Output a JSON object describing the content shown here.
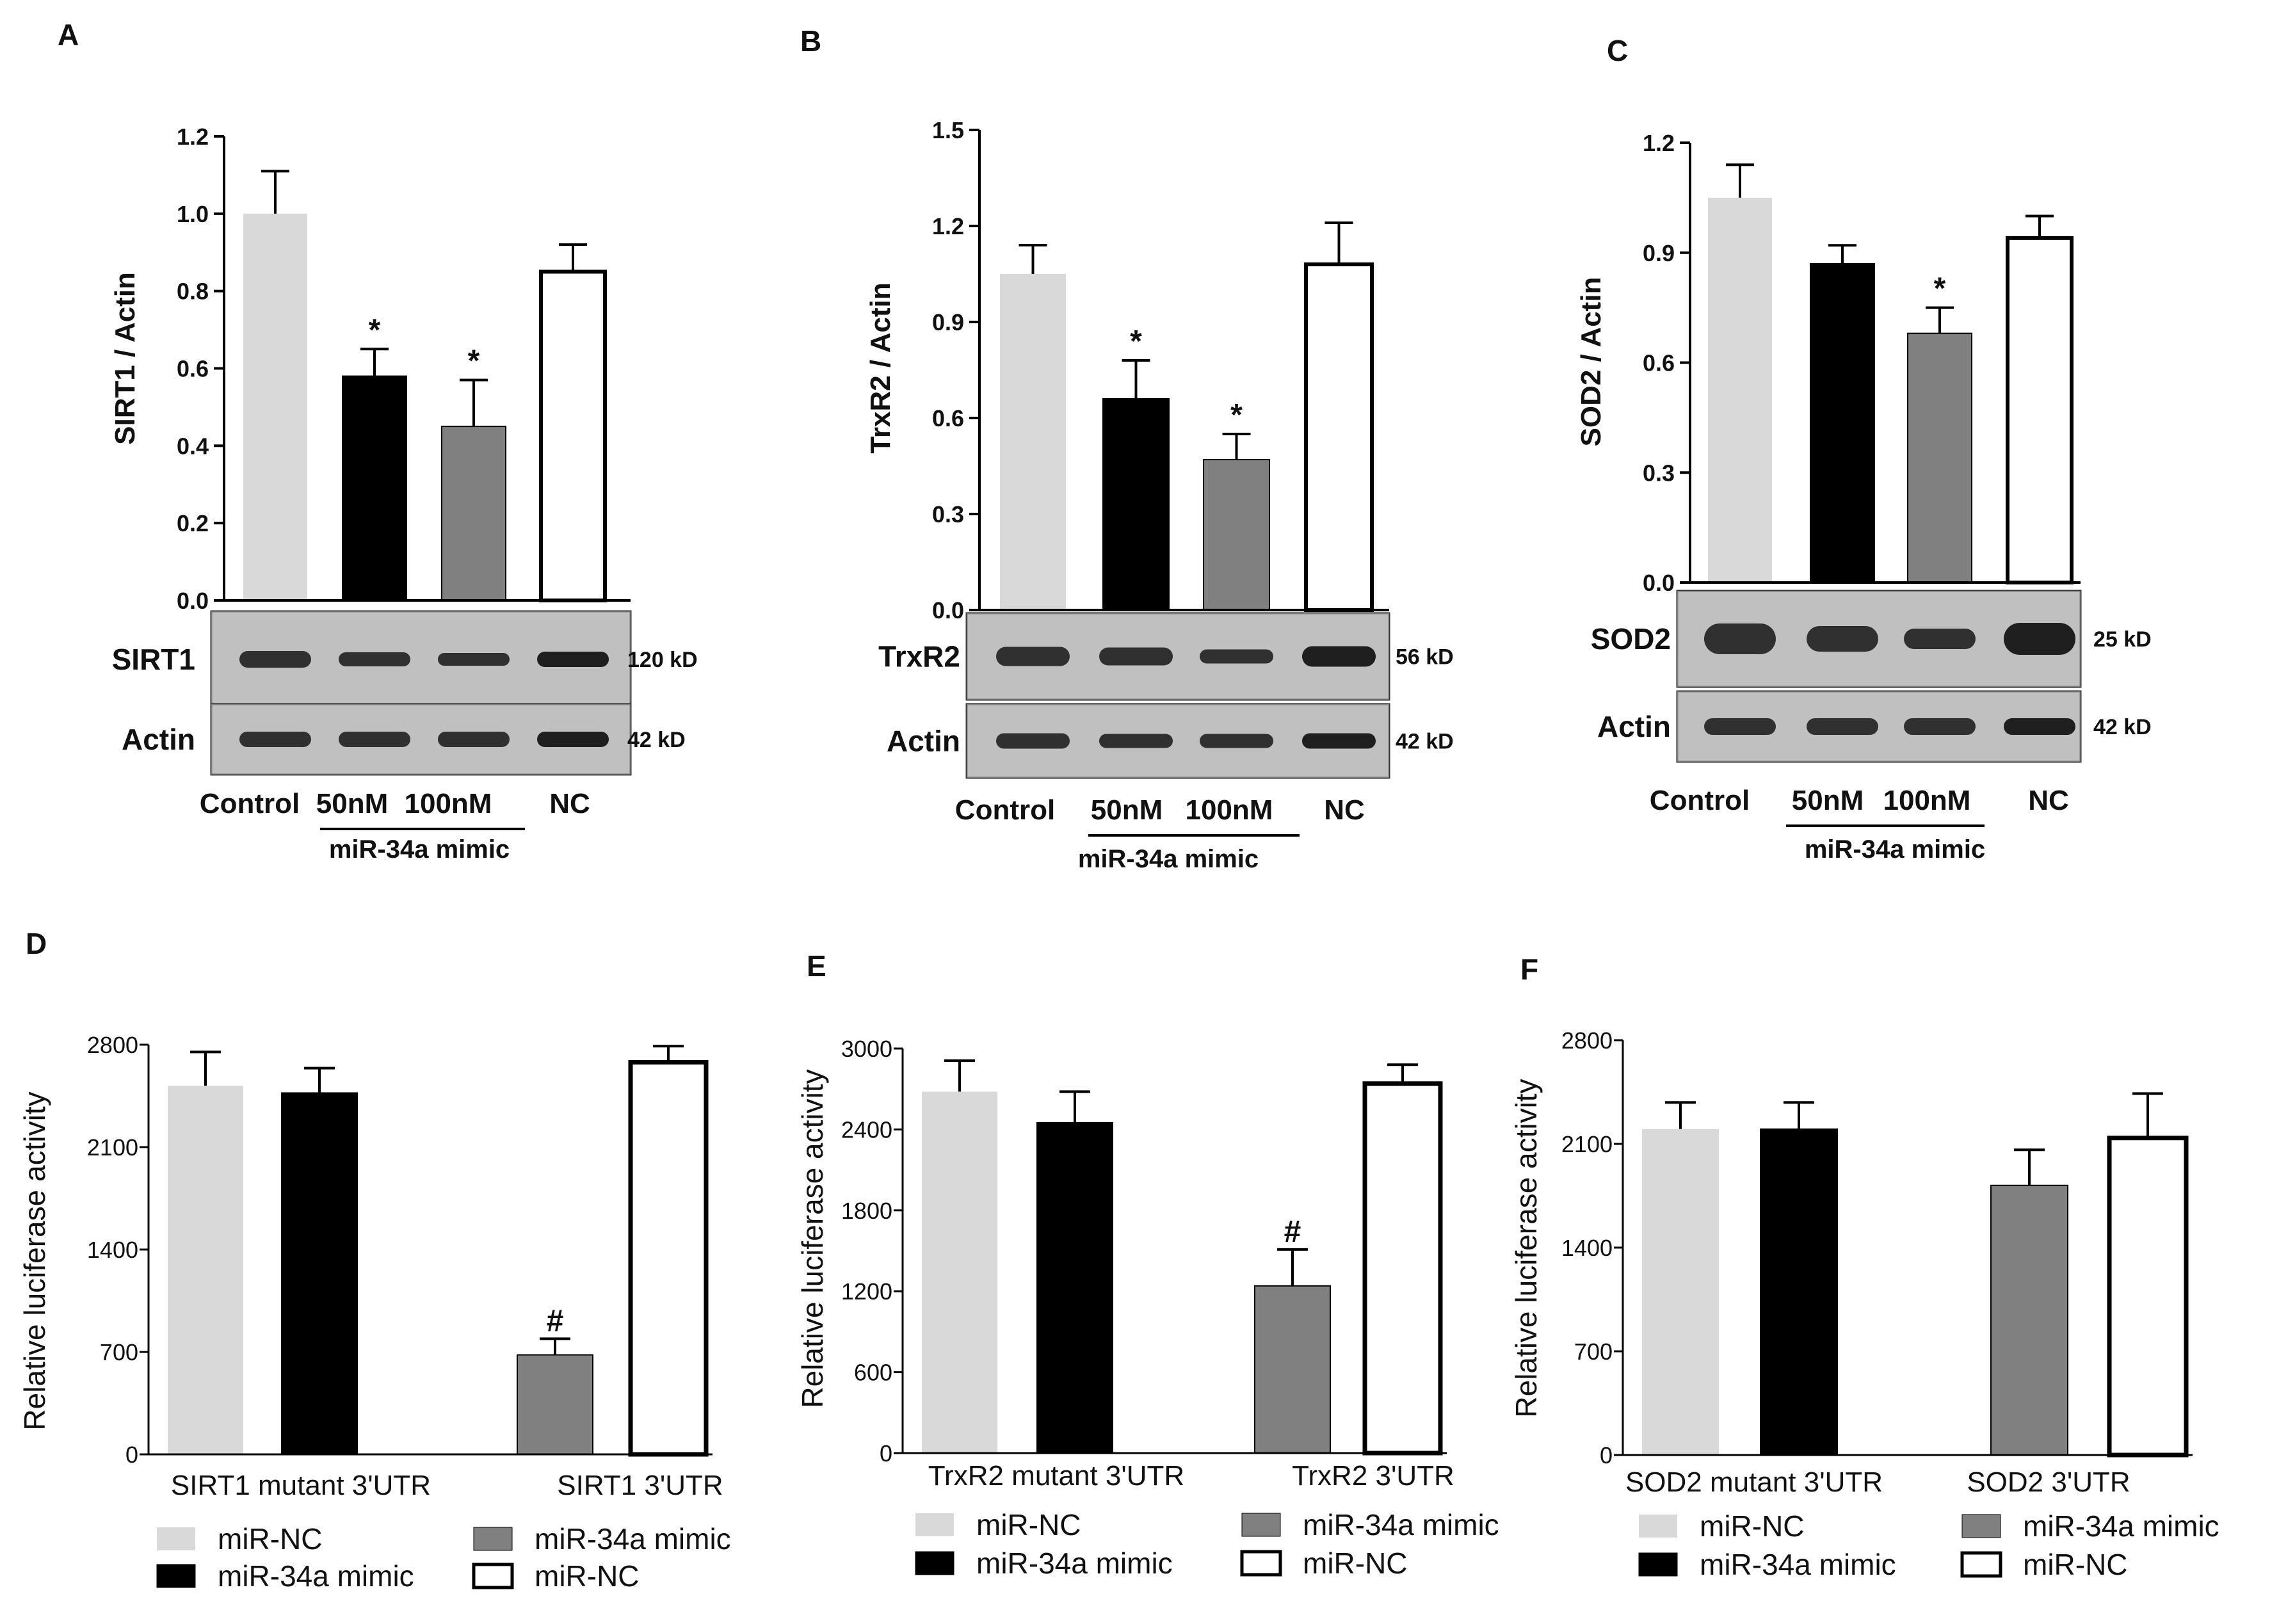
{
  "colors": {
    "light": "#d9d9d9",
    "black": "#000000",
    "gray": "#808080",
    "white": "#ffffff",
    "axis": "#000000"
  },
  "chart_data": [
    {
      "panel": "A",
      "type": "bar",
      "ylabel": "SIRT1 / Actin",
      "ylim": [
        0,
        1.2
      ],
      "yticks": [
        "0.0",
        "0.2",
        "0.4",
        "0.6",
        "0.8",
        "1.0",
        "1.2"
      ],
      "categories": [
        "Control",
        "50nM",
        "100nM",
        "NC"
      ],
      "group_label": "miR-34a mimic",
      "values": [
        1.0,
        0.58,
        0.45,
        0.85
      ],
      "errors": [
        0.11,
        0.07,
        0.12,
        0.07
      ],
      "fills": [
        "light",
        "black",
        "gray",
        "white"
      ],
      "signif": [
        "",
        "*",
        "*",
        ""
      ],
      "blots": [
        {
          "label": "SIRT1",
          "kd": "120 kD"
        },
        {
          "label": "Actin",
          "kd": "42 kD"
        }
      ]
    },
    {
      "panel": "B",
      "type": "bar",
      "ylabel": "TrxR2 / Actin",
      "ylim": [
        0,
        1.5
      ],
      "yticks": [
        "0.0",
        "0.3",
        "0.6",
        "0.9",
        "1.2",
        "1.5"
      ],
      "categories": [
        "Control",
        "50nM",
        "100nM",
        "NC"
      ],
      "group_label": "miR-34a mimic",
      "values": [
        1.05,
        0.66,
        0.47,
        1.08
      ],
      "errors": [
        0.09,
        0.12,
        0.08,
        0.13
      ],
      "fills": [
        "light",
        "black",
        "gray",
        "white"
      ],
      "signif": [
        "",
        "*",
        "*",
        ""
      ],
      "blots": [
        {
          "label": "TrxR2",
          "kd": "56 kD"
        },
        {
          "label": "Actin",
          "kd": "42 kD"
        }
      ]
    },
    {
      "panel": "C",
      "type": "bar",
      "ylabel": "SOD2 / Actin",
      "ylim": [
        0,
        1.2
      ],
      "yticks": [
        "0.0",
        "0.3",
        "0.6",
        "0.9",
        "1.2"
      ],
      "categories": [
        "Control",
        "50nM",
        "100nM",
        "NC"
      ],
      "group_label": "miR-34a mimic",
      "values": [
        1.05,
        0.87,
        0.68,
        0.94
      ],
      "errors": [
        0.09,
        0.05,
        0.07,
        0.06
      ],
      "fills": [
        "light",
        "black",
        "gray",
        "white"
      ],
      "signif": [
        "",
        "",
        "*",
        ""
      ],
      "blots": [
        {
          "label": "SOD2",
          "kd": "25 kD"
        },
        {
          "label": "Actin",
          "kd": "42 kD"
        }
      ]
    },
    {
      "panel": "D",
      "type": "bar",
      "ylabel": "Relative luciferase activity",
      "ylim": [
        0,
        2800
      ],
      "yticks": [
        "0",
        "700",
        "1400",
        "2100",
        "2800"
      ],
      "groups": [
        "SIRT1  mutant  3'UTR",
        "SIRT1  3'UTR"
      ],
      "values": [
        2520,
        2470,
        680,
        2680
      ],
      "errors": [
        230,
        170,
        110,
        110
      ],
      "fills": [
        "light",
        "black",
        "gray",
        "white"
      ],
      "signif": [
        "",
        "",
        "#",
        ""
      ],
      "legend": [
        "miR-NC",
        "miR-34a mimic",
        "miR-34a mimic",
        "miR-NC"
      ]
    },
    {
      "panel": "E",
      "type": "bar",
      "ylabel": "Relative luciferase activity",
      "ylim": [
        0,
        3000
      ],
      "yticks": [
        "0",
        "600",
        "1200",
        "1800",
        "2400",
        "3000"
      ],
      "groups": [
        "TrxR2  mutant  3'UTR",
        "TrxR2  3'UTR"
      ],
      "values": [
        2680,
        2450,
        1240,
        2740
      ],
      "errors": [
        230,
        230,
        270,
        140
      ],
      "fills": [
        "light",
        "black",
        "gray",
        "white"
      ],
      "signif": [
        "",
        "",
        "#",
        ""
      ],
      "legend": [
        "miR-NC",
        "miR-34a mimic",
        "miR-34a mimic",
        "miR-NC"
      ]
    },
    {
      "panel": "F",
      "type": "bar",
      "ylabel": "Relative luciferase activity",
      "ylim": [
        0,
        2800
      ],
      "yticks": [
        "0",
        "700",
        "1400",
        "2100",
        "2800"
      ],
      "groups": [
        "SOD2 mutant 3'UTR",
        "SOD2 3'UTR"
      ],
      "values": [
        2200,
        2200,
        1820,
        2140
      ],
      "errors": [
        180,
        180,
        240,
        300
      ],
      "fills": [
        "light",
        "black",
        "gray",
        "white"
      ],
      "signif": [
        "",
        "",
        "",
        ""
      ],
      "legend": [
        "miR-NC",
        "miR-34a mimic",
        "miR-34a mimic",
        "miR-NC"
      ]
    }
  ]
}
